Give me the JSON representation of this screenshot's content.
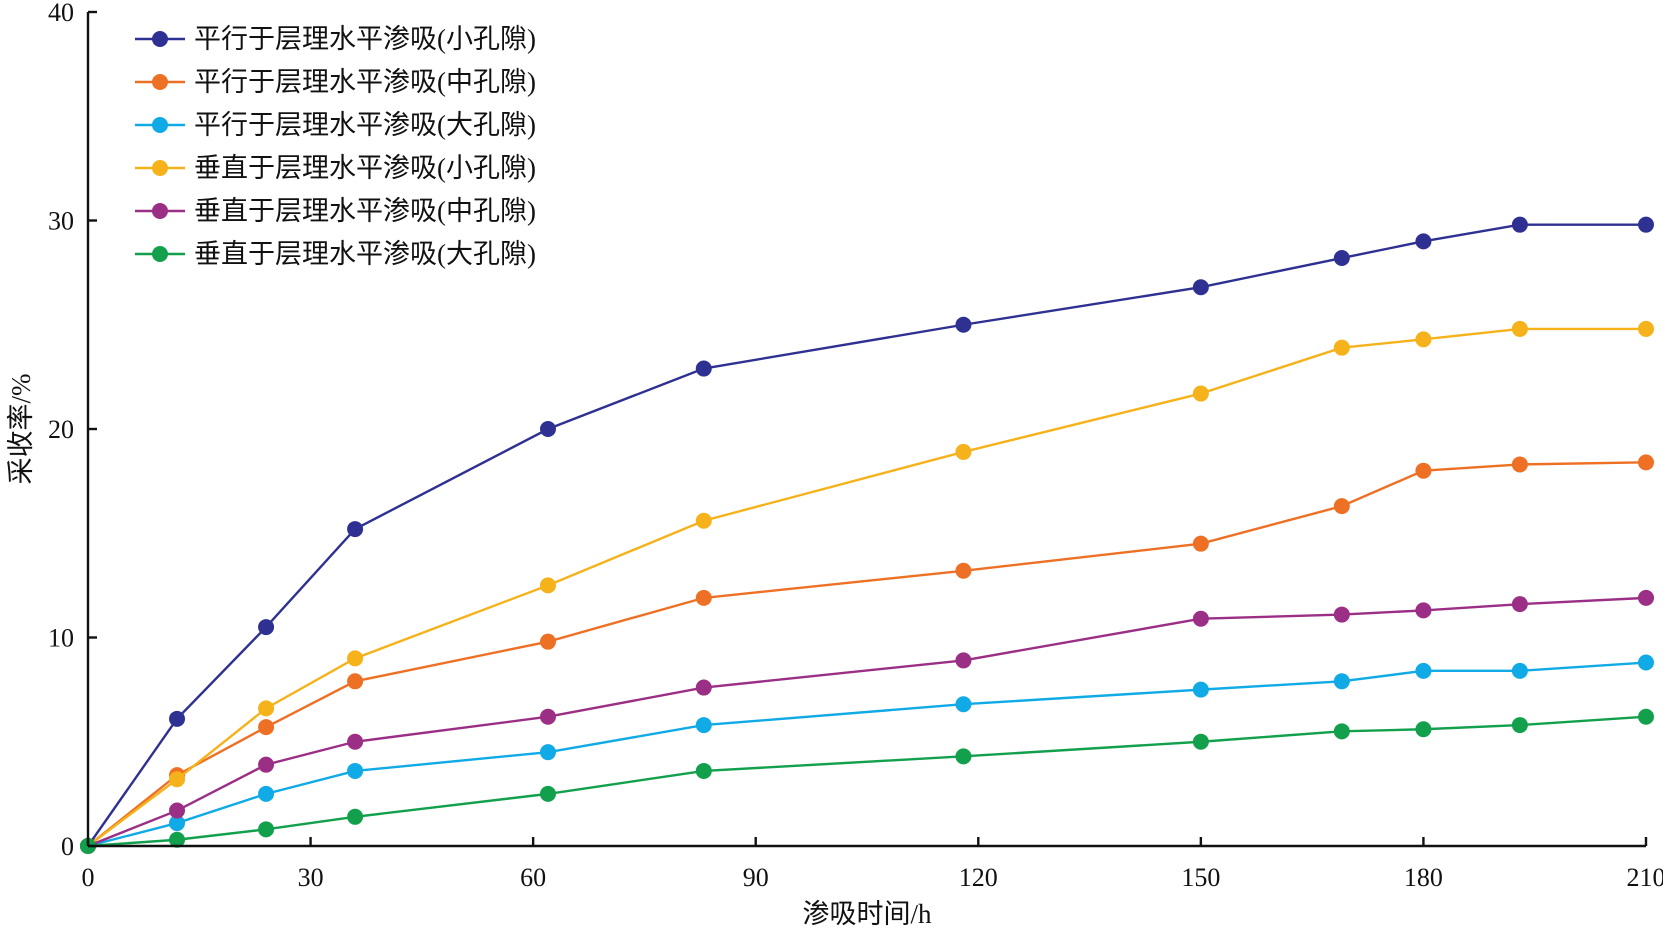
{
  "chart_data": {
    "type": "line",
    "title": "",
    "xlabel": "渗吸时间/h",
    "ylabel": "采收率/%",
    "xlim": [
      0,
      210
    ],
    "ylim": [
      0,
      40
    ],
    "xticks": [
      0,
      30,
      60,
      90,
      120,
      150,
      180,
      210
    ],
    "yticks": [
      0,
      10,
      20,
      30,
      40
    ],
    "grid": false,
    "legend_position": "top-left",
    "x": [
      0,
      12,
      24,
      36,
      62,
      83,
      118,
      150,
      169,
      180,
      193,
      210
    ],
    "series": [
      {
        "name": "平行于层理水平渗吸(小孔隙)",
        "color": "#2e3192",
        "values": [
          0,
          6.1,
          10.5,
          15.2,
          20.0,
          22.9,
          25.0,
          26.8,
          28.2,
          29.0,
          29.8,
          29.8
        ]
      },
      {
        "name": "平行于层理水平渗吸(中孔隙)",
        "color": "#ee7024",
        "values": [
          0,
          3.4,
          5.7,
          7.9,
          9.8,
          11.9,
          13.2,
          14.5,
          16.3,
          18.0,
          18.3,
          18.4
        ]
      },
      {
        "name": "平行于层理水平渗吸(大孔隙)",
        "color": "#10aae6",
        "values": [
          0,
          1.1,
          2.5,
          3.6,
          4.5,
          5.8,
          6.8,
          7.5,
          7.9,
          8.4,
          8.4,
          8.8
        ]
      },
      {
        "name": "垂直于层理水平渗吸(小孔隙)",
        "color": "#f5b21a",
        "values": [
          0,
          3.2,
          6.6,
          9.0,
          12.5,
          15.6,
          18.9,
          21.7,
          23.9,
          24.3,
          24.8,
          24.8
        ]
      },
      {
        "name": "垂直于层理水平渗吸(中孔隙)",
        "color": "#9b2f86",
        "values": [
          0,
          1.7,
          3.9,
          5.0,
          6.2,
          7.6,
          8.9,
          10.9,
          11.1,
          11.3,
          11.6,
          11.9
        ]
      },
      {
        "name": "垂直于层理水平渗吸(大孔隙)",
        "color": "#12a04d",
        "values": [
          0,
          0.3,
          0.8,
          1.4,
          2.5,
          3.6,
          4.3,
          5.0,
          5.5,
          5.6,
          5.8,
          6.2
        ]
      }
    ]
  }
}
